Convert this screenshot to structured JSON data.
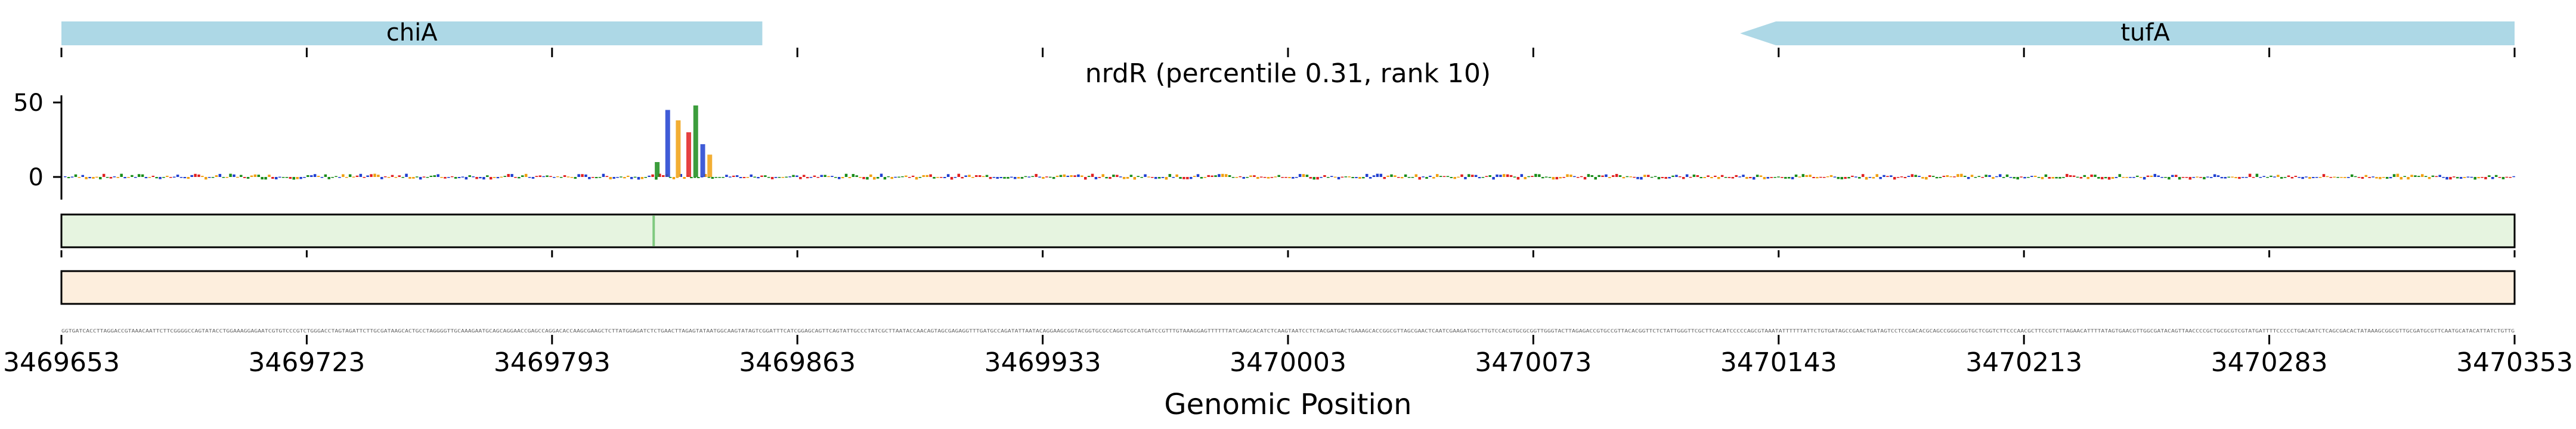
{
  "chart_data": {
    "type": "genome-track",
    "title": "nrdR (percentile 0.31, rank 10)",
    "xlabel": "Genomic Position",
    "xlim": [
      3469653,
      3470353
    ],
    "xticks": [
      3469653,
      3469723,
      3469793,
      3469863,
      3469933,
      3470003,
      3470073,
      3470143,
      3470213,
      3470283,
      3470353
    ],
    "xtick_labels": [
      "3469653",
      "3469723",
      "3469793",
      "3469863",
      "3469933",
      "3470003",
      "3470073",
      "3470143",
      "3470213",
      "3470283",
      "3470353"
    ],
    "genes": [
      {
        "name": "chiA",
        "start": 3469653,
        "end": 3469853,
        "strand": "+"
      },
      {
        "name": "tufA",
        "start": 3470132,
        "end": 3470353,
        "strand": "-"
      }
    ],
    "logo_track": {
      "yticks": [
        0,
        50
      ],
      "ylim": [
        -12,
        55
      ],
      "peaks": [
        {
          "position": 3469823,
          "value": 10
        },
        {
          "position": 3469826,
          "value": 45
        },
        {
          "position": 3469829,
          "value": 38
        },
        {
          "position": 3469832,
          "value": 30
        },
        {
          "position": 3469834,
          "value": 48
        },
        {
          "position": 3469836,
          "value": 22
        },
        {
          "position": 3469838,
          "value": 15
        }
      ]
    },
    "heat_tracks": [
      {
        "name": "green-track",
        "color": "#e6f4e0",
        "peak_position": 3469822
      },
      {
        "name": "orange-track",
        "color": "#fdeedd"
      }
    ]
  }
}
